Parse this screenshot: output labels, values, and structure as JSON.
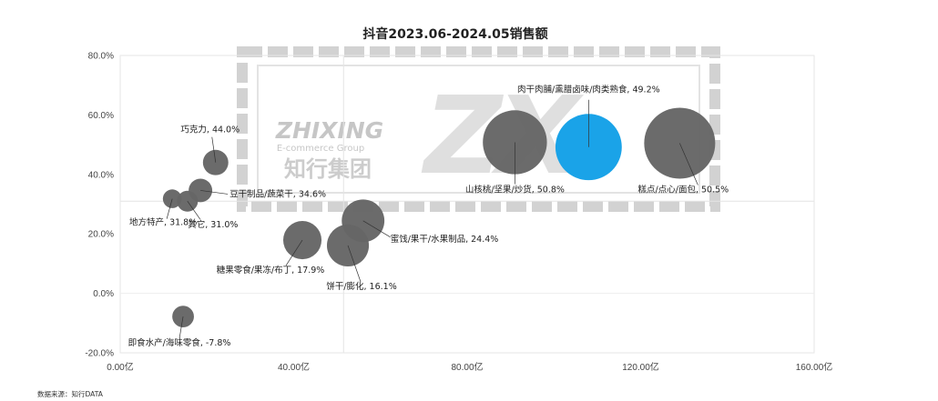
{
  "source_note": "数据来源：知行DATA",
  "watermark": {
    "line1": "ZHIXING",
    "line2": "E-commerce Group",
    "line3": "知行集团",
    "mark": "ZX"
  },
  "colors": {
    "bubble": "#666666",
    "highlight": "#1aa3e8",
    "grid": "#e6e6e6",
    "watermark": "#d0d0d0"
  },
  "chart_data": {
    "type": "scatter",
    "title": "抖音2023.06-2024.05销售额",
    "xlabel": "",
    "ylabel": "",
    "xlim": [
      0,
      160
    ],
    "ylim": [
      -20,
      80
    ],
    "x_ticks": [
      "0.00亿",
      "40.00亿",
      "80.00亿",
      "120.00亿",
      "160.00亿"
    ],
    "y_ticks": [
      "-20.0%",
      "0.0%",
      "20.0%",
      "40.0%",
      "60.0%",
      "80.0%"
    ],
    "x_divider": 51.5,
    "y_divider": 31,
    "points": [
      {
        "label": "肉干肉脯/熏腊卤味/肉类熟食, 49.2%",
        "x": 108,
        "y": 49.2,
        "size": 7.5,
        "highlight": true
      },
      {
        "label": "山核桃/坚果/炒货, 50.8%",
        "x": 91,
        "y": 50.8,
        "size": 7.0
      },
      {
        "label": "糕点/点心/面包, 50.5%",
        "x": 129,
        "y": 50.5,
        "size": 8.6
      },
      {
        "label": "巧克力, 44.0%",
        "x": 22,
        "y": 44.0,
        "size": 1.1
      },
      {
        "label": "豆干制品/蔬菜干, 34.6%",
        "x": 18.5,
        "y": 34.6,
        "size": 0.95
      },
      {
        "label": "地方特产, 31.8%",
        "x": 12,
        "y": 31.8,
        "size": 0.6
      },
      {
        "label": "其它, 31.0%",
        "x": 15.5,
        "y": 31.0,
        "size": 0.75
      },
      {
        "label": "蜜饯/果干/水果制品, 24.4%",
        "x": 56,
        "y": 24.4,
        "size": 3.1
      },
      {
        "label": "糖果零食/果冻/布丁, 17.9%",
        "x": 42,
        "y": 17.9,
        "size": 2.5
      },
      {
        "label": "饼干/膨化, 16.1%",
        "x": 52.5,
        "y": 16.1,
        "size": 3.0
      },
      {
        "label": "即食水产/海味零食, -7.8%",
        "x": 14.5,
        "y": -7.8,
        "size": 0.8
      }
    ]
  }
}
